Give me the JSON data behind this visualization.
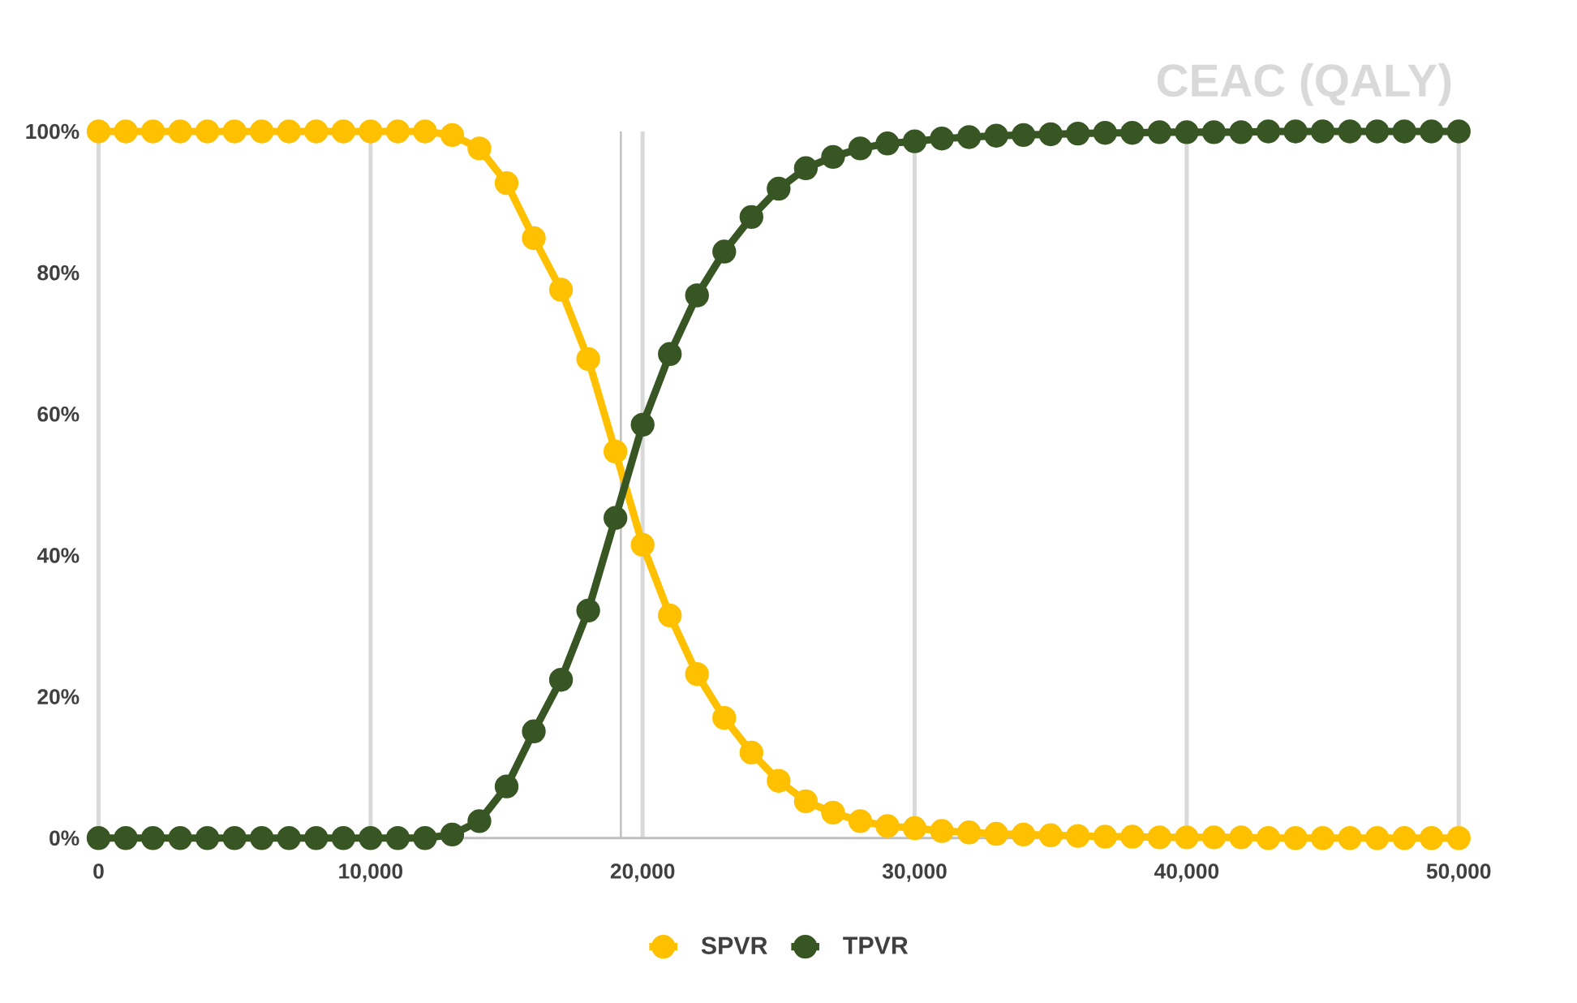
{
  "chart_data": {
    "type": "line",
    "title": "CEAC (QALY)",
    "x": [
      0,
      1000,
      2000,
      3000,
      4000,
      5000,
      6000,
      7000,
      8000,
      9000,
      10000,
      11000,
      12000,
      13000,
      14000,
      15000,
      16000,
      17000,
      18000,
      19000,
      20000,
      21000,
      22000,
      23000,
      24000,
      25000,
      26000,
      27000,
      28000,
      29000,
      30000,
      31000,
      32000,
      33000,
      34000,
      35000,
      36000,
      37000,
      38000,
      39000,
      40000,
      41000,
      42000,
      43000,
      44000,
      45000,
      46000,
      47000,
      48000,
      49000,
      50000
    ],
    "series": [
      {
        "name": "SPVR",
        "color": "#ffc000",
        "values": [
          100,
          100,
          100,
          100,
          100,
          100,
          100,
          100,
          100,
          100,
          100,
          100,
          100,
          99.5,
          97.6,
          92.7,
          84.9,
          77.6,
          67.8,
          54.7,
          41.5,
          31.5,
          23.2,
          17,
          12.1,
          8.1,
          5.2,
          3.6,
          2.4,
          1.7,
          1.4,
          1.0,
          0.8,
          0.6,
          0.5,
          0.4,
          0.3,
          0.2,
          0.2,
          0.1,
          0.1,
          0.1,
          0.1,
          0,
          0,
          0,
          0,
          0,
          0,
          0,
          0
        ]
      },
      {
        "name": "TPVR",
        "color": "#375623",
        "values": [
          0,
          0,
          0,
          0,
          0,
          0,
          0,
          0,
          0,
          0,
          0,
          0,
          0,
          0.5,
          2.4,
          7.3,
          15.1,
          22.4,
          32.2,
          45.3,
          58.5,
          68.5,
          76.8,
          83,
          87.9,
          91.9,
          94.8,
          96.4,
          97.6,
          98.3,
          98.6,
          99,
          99.2,
          99.4,
          99.5,
          99.6,
          99.7,
          99.8,
          99.8,
          99.9,
          99.9,
          99.9,
          99.9,
          100,
          100,
          100,
          100,
          100,
          100,
          100,
          100
        ]
      }
    ],
    "xlim": [
      0,
      50000
    ],
    "xticks": [
      0,
      {
        "value": 10000,
        "label": "10,000"
      },
      {
        "value": 20000,
        "label": "20,000"
      },
      {
        "value": 30000,
        "label": "30,000"
      },
      {
        "value": 40000,
        "label": "40,000"
      },
      {
        "value": 50000,
        "label": "50,000"
      }
    ],
    "ylim": [
      0,
      100
    ],
    "yticks": [
      {
        "value": 0,
        "label": "0%"
      },
      {
        "value": 20,
        "label": "20%"
      },
      {
        "value": 40,
        "label": "40%"
      },
      {
        "value": 60,
        "label": "60%"
      },
      {
        "value": 80,
        "label": "80%"
      },
      {
        "value": 100,
        "label": "100%"
      }
    ],
    "ref_lines": [
      {
        "axis": "x",
        "value": 19200,
        "color": "#bfbfbf"
      }
    ],
    "grid": "x",
    "legend": "bottom",
    "marker": "circle",
    "line_style": "solid"
  }
}
